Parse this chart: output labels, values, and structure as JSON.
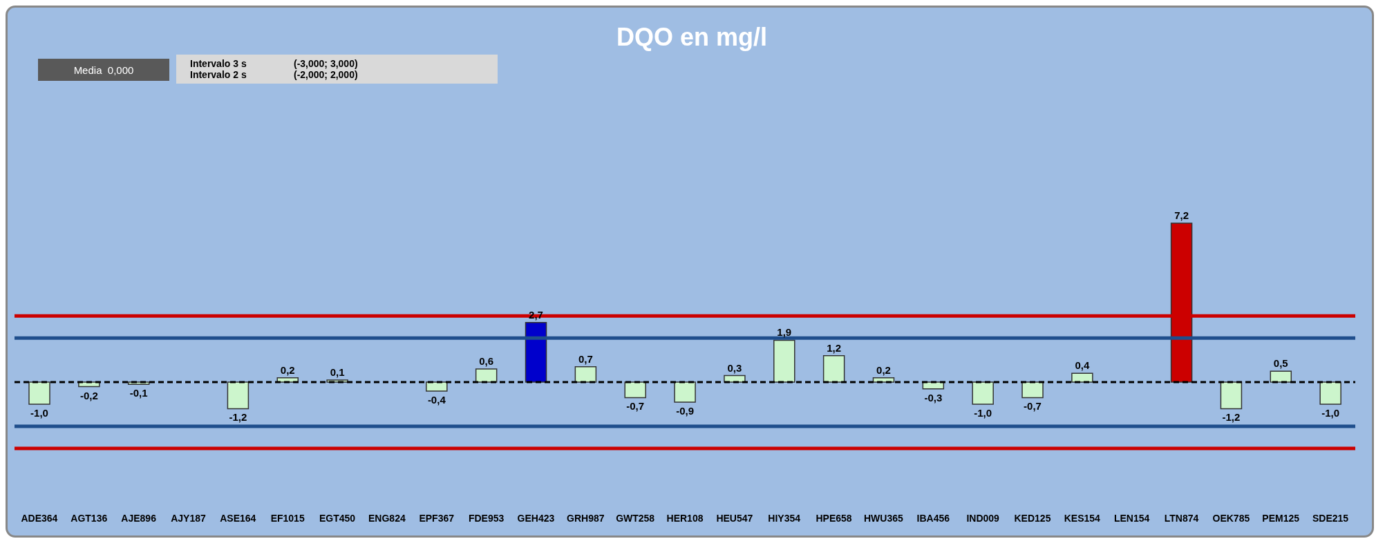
{
  "chart_data": {
    "type": "bar",
    "title": "DQO en mg/l",
    "categories": [
      "ADE364",
      "AGT136",
      "AJE896",
      "AJY187",
      "ASE164",
      "EF1015",
      "EGT450",
      "ENG824",
      "EPF367",
      "FDE953",
      "GEH423",
      "GRH987",
      "GWT258",
      "HER108",
      "HEU547",
      "HIY354",
      "HPE658",
      "HWU365",
      "IBA456",
      "IND009",
      "KED125",
      "KES154",
      "LEN154",
      "LTN874",
      "OEK785",
      "PEM125",
      "SDE215"
    ],
    "values": [
      -1.0,
      -0.2,
      -0.1,
      null,
      -1.2,
      0.2,
      0.1,
      null,
      -0.4,
      0.6,
      2.7,
      0.7,
      -0.7,
      -0.9,
      0.3,
      1.9,
      1.2,
      0.2,
      -0.3,
      -1.0,
      -0.7,
      0.4,
      null,
      7.2,
      -1.2,
      0.5,
      -1.0
    ],
    "value_labels": [
      "-1,0",
      "-0,2",
      "-0,1",
      null,
      "-1,2",
      "0,2",
      "0,1",
      null,
      "-0,4",
      "0,6",
      "2,7",
      "0,7",
      "-0,7",
      "-0,9",
      "0,3",
      "1,9",
      "1,2",
      "0,2",
      "-0,3",
      "-1,0",
      "-0,7",
      "0,4",
      null,
      "7,2",
      "-1,2",
      "0,5",
      "-1,0"
    ],
    "colors": [
      "#ccf5cc",
      "#ccf5cc",
      "#ccf5cc",
      "#ccf5cc",
      "#ccf5cc",
      "#ccf5cc",
      "#ccf5cc",
      "#ccf5cc",
      "#ccf5cc",
      "#ccf5cc",
      "#0000cc",
      "#ccf5cc",
      "#ccf5cc",
      "#ccf5cc",
      "#ccf5cc",
      "#ccf5cc",
      "#ccf5cc",
      "#ccf5cc",
      "#ccf5cc",
      "#ccf5cc",
      "#ccf5cc",
      "#ccf5cc",
      "#ccf5cc",
      "#cc0000",
      "#ccf5cc",
      "#ccf5cc",
      "#ccf5cc"
    ],
    "tick_labels": "x",
    "grid": false,
    "legend": false,
    "ref_lines": [
      {
        "axis": "y",
        "value": 3,
        "color": "#cc0000",
        "line_style": "solid"
      },
      {
        "axis": "y",
        "value": 2,
        "color": "#1f4e8c",
        "line_style": "solid"
      },
      {
        "axis": "y",
        "value": 0,
        "color": "#000000",
        "line_style": "dashed"
      },
      {
        "axis": "y",
        "value": -2,
        "color": "#1f4e8c",
        "line_style": "solid"
      },
      {
        "axis": "y",
        "value": -3,
        "color": "#cc0000",
        "line_style": "solid"
      }
    ],
    "annotations": [
      "Media  0,000",
      "Intervalo 3 s",
      "(-3,000; 3,000)",
      "Intervalo 2 s",
      "(-2,000; 2,000)"
    ]
  }
}
